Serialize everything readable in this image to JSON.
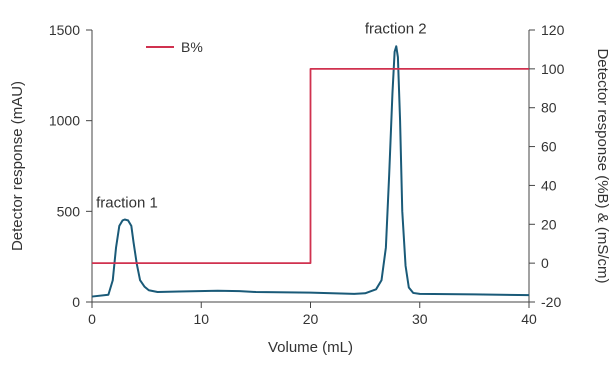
{
  "chart_data": {
    "type": "line",
    "title": "",
    "xlabel": "Volume (mL)",
    "ylabel": "Detector response (mAU)",
    "y2label": "Detector response (%B) & (mS/cm)",
    "xlim": [
      0,
      40
    ],
    "ylim": [
      0,
      1500
    ],
    "y2lim": [
      -20,
      120
    ],
    "xticks": [
      0,
      10,
      20,
      30,
      40
    ],
    "yticks": [
      0,
      500,
      1000,
      1500
    ],
    "y2ticks": [
      -20,
      0,
      20,
      40,
      60,
      80,
      100,
      120
    ],
    "grid": false,
    "legend": {
      "position": "top-left",
      "entries": [
        "B%"
      ]
    },
    "series": [
      {
        "axis": "left",
        "color": "#1a5a78",
        "x": [
          0,
          1.5,
          1.9,
          2.2,
          2.5,
          2.8,
          3.0,
          3.3,
          3.6,
          3.8,
          4.1,
          4.4,
          4.8,
          5.2,
          6.0,
          8.0,
          11.5,
          13.5,
          15.0,
          20.0,
          24.0,
          25.0,
          26.0,
          26.5,
          26.9,
          27.2,
          27.5,
          27.7,
          27.85,
          28.0,
          28.2,
          28.4,
          28.7,
          29.0,
          29.4,
          30.0,
          35.0,
          40.0
        ],
        "y": [
          30,
          40,
          120,
          300,
          420,
          450,
          455,
          450,
          420,
          330,
          210,
          120,
          85,
          65,
          55,
          58,
          62,
          60,
          55,
          52,
          45,
          48,
          70,
          120,
          300,
          700,
          1150,
          1380,
          1410,
          1350,
          1000,
          500,
          200,
          80,
          50,
          45,
          42,
          38
        ]
      },
      {
        "name": "B%",
        "axis": "right",
        "color": "#d0314f",
        "x": [
          0,
          20,
          20,
          40
        ],
        "y": [
          0,
          0,
          100,
          100
        ]
      }
    ],
    "annotations": [
      {
        "text": "fraction   1",
        "x": 3.2,
        "y": 520
      },
      {
        "text": "fraction   2",
        "x": 27.8,
        "y": 1480
      }
    ]
  }
}
